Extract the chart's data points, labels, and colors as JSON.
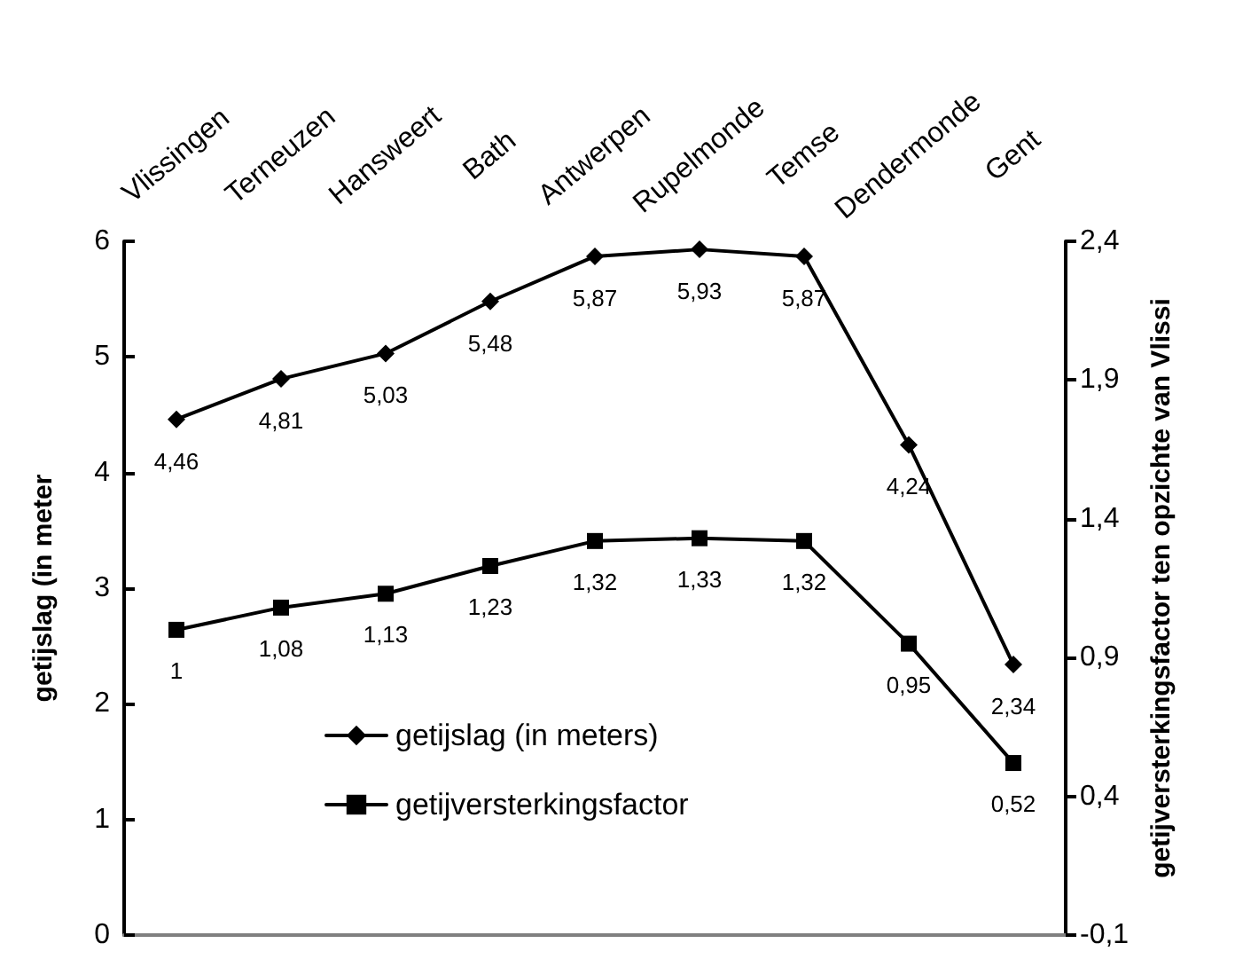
{
  "chart_data": {
    "type": "line",
    "categories": [
      "Vlissingen",
      "Terneuzen",
      "Hansweert",
      "Bath",
      "Antwerpen",
      "Rupelmonde",
      "Temse",
      "Dendermonde",
      "Gent"
    ],
    "ylabel": "getijslag (in meter",
    "y2label": "getijversterkingsfactor ten opzichte van Vlissi",
    "ylim": [
      0,
      6
    ],
    "yticks": [
      0,
      1,
      2,
      3,
      4,
      5,
      6
    ],
    "y2lim": [
      -0.1,
      2.4
    ],
    "y2ticks": [
      {
        "value": -0.1,
        "label": "-0,1"
      },
      {
        "value": 0.4,
        "label": "0,4"
      },
      {
        "value": 0.9,
        "label": "0,9"
      },
      {
        "value": 1.4,
        "label": "1,4"
      },
      {
        "value": 1.9,
        "label": "1,9"
      },
      {
        "value": 2.4,
        "label": "2,4"
      }
    ],
    "series": [
      {
        "name": "getijslag (in meters)",
        "color": "#000000",
        "marker": "diamond",
        "values": [
          4.46,
          4.81,
          5.03,
          5.48,
          5.87,
          5.93,
          5.87,
          4.24,
          2.34
        ],
        "value_labels": [
          "4,46",
          "4,81",
          "5,03",
          "5,48",
          "5,87",
          "5,93",
          "5,87",
          "4,24",
          "2,34"
        ]
      },
      {
        "name": "getijversterkingsfactor",
        "color": "#000000",
        "marker": "square",
        "axis": "y2",
        "values": [
          1,
          1.08,
          1.13,
          1.23,
          1.32,
          1.33,
          1.32,
          0.95,
          0.52
        ],
        "value_labels": [
          "1",
          "1,08",
          "1,13",
          "1,23",
          "1,32",
          "1,33",
          "1,32",
          "0,95",
          "0,52"
        ]
      }
    ],
    "legend": "bottom left",
    "grid": false,
    "line_style": "solid"
  }
}
